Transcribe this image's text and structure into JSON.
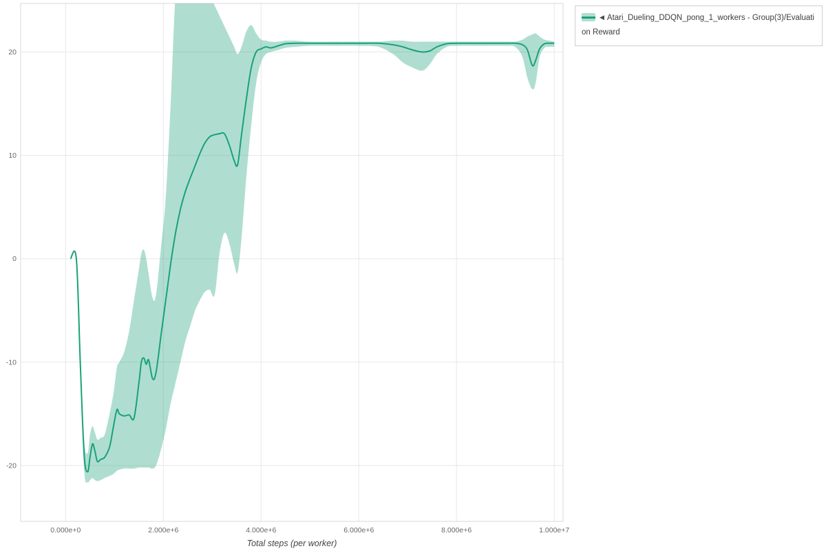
{
  "page": {
    "background": "#ffffff"
  },
  "legend": {
    "collapse_icon": "◀",
    "series_label": "Atari_Dueling_DDQN_pong_1_workers - Group(3)/Evaluation Reward"
  },
  "chart_data": {
    "type": "line",
    "title": "",
    "xlabel": "Total steps (per worker)",
    "ylabel": "",
    "grid": true,
    "legend_position": "top-right-outside",
    "xlim": [
      -920000,
      10180000
    ],
    "ylim": [
      -25.4,
      24.7
    ],
    "x_ticks": [
      0,
      2000000,
      4000000,
      6000000,
      8000000,
      10000000
    ],
    "x_tick_labels": [
      "0.000e+0",
      "2.000e+6",
      "4.000e+6",
      "6.000e+6",
      "8.000e+6",
      "1.000e+7"
    ],
    "y_ticks": [
      -20,
      -10,
      0,
      10,
      20
    ],
    "y_tick_labels": [
      "-20",
      "-10",
      "0",
      "10",
      "20"
    ],
    "series": [
      {
        "name": "Atari_Dueling_DDQN_pong_1_workers - Group(3)/Evaluation Reward",
        "line_color": "#19a179",
        "band_color": "rgba(25,161,121,0.35)",
        "x": [
          100000,
          220000,
          300000,
          380000,
          450000,
          500000,
          550000,
          600000,
          650000,
          720000,
          800000,
          900000,
          980000,
          1050000,
          1100000,
          1200000,
          1300000,
          1400000,
          1500000,
          1550000,
          1600000,
          1650000,
          1700000,
          1780000,
          1850000,
          1950000,
          2050000,
          2150000,
          2250000,
          2350000,
          2450000,
          2550000,
          2650000,
          2750000,
          2850000,
          2950000,
          3050000,
          3150000,
          3250000,
          3350000,
          3450000,
          3520000,
          3600000,
          3700000,
          3800000,
          3900000,
          4000000,
          4100000,
          4200000,
          4350000,
          4500000,
          4700000,
          5000000,
          5500000,
          6000000,
          6400000,
          6700000,
          6900000,
          7100000,
          7300000,
          7450000,
          7600000,
          7800000,
          8000000,
          8500000,
          9000000,
          9200000,
          9350000,
          9450000,
          9550000,
          9620000,
          9700000,
          9800000,
          9900000,
          10000000
        ],
        "mean": [
          0,
          0,
          -10,
          -19,
          -20.6,
          -19.2,
          -17.9,
          -18.6,
          -19.6,
          -19.4,
          -19.2,
          -18.2,
          -16.2,
          -14.6,
          -15,
          -15.2,
          -15.1,
          -15.4,
          -12,
          -10,
          -9.6,
          -10.2,
          -9.8,
          -11.6,
          -11,
          -7.5,
          -4,
          -0.5,
          2.5,
          4.8,
          6.5,
          7.8,
          9,
          10.2,
          11.2,
          11.8,
          12,
          12.1,
          12.1,
          11,
          9.5,
          9.1,
          12,
          15.5,
          18.5,
          20,
          20.3,
          20.5,
          20.4,
          20.6,
          20.8,
          20.85,
          20.85,
          20.85,
          20.85,
          20.85,
          20.7,
          20.5,
          20.2,
          20,
          20.1,
          20.5,
          20.8,
          20.85,
          20.85,
          20.85,
          20.85,
          20.7,
          20.2,
          18.7,
          19.2,
          20.3,
          20.8,
          20.85,
          20.85
        ],
        "lower": [
          0,
          0,
          -11,
          -20.5,
          -21.6,
          -21.4,
          -21.2,
          -21.4,
          -21.5,
          -21.4,
          -21.2,
          -21,
          -20.8,
          -20.5,
          -20.4,
          -20.3,
          -20.3,
          -20.3,
          -20.2,
          -20.2,
          -20.2,
          -20.2,
          -20.2,
          -20.3,
          -20,
          -18.5,
          -16.5,
          -14,
          -12,
          -10,
          -8,
          -6.5,
          -5,
          -4,
          -3.2,
          -3,
          -3.5,
          0.5,
          2.5,
          1.5,
          -0.5,
          -1.3,
          2,
          8,
          13,
          17,
          19,
          19.8,
          20,
          20.2,
          20.4,
          20.5,
          20.6,
          20.6,
          20.6,
          20.5,
          19.8,
          19,
          18.5,
          18.2,
          18.8,
          19.8,
          20.5,
          20.6,
          20.6,
          20.6,
          20.5,
          19.5,
          17.5,
          16.4,
          17,
          19.5,
          20.4,
          20.5,
          20.5
        ],
        "upper": [
          0,
          0,
          -9,
          -17.5,
          -18.8,
          -17,
          -16.2,
          -16.8,
          -17.5,
          -17.3,
          -17,
          -15,
          -13,
          -10.5,
          -10,
          -9,
          -7,
          -4,
          -1,
          0.5,
          0.9,
          0,
          -1.5,
          -3.8,
          -3.5,
          1,
          6,
          15,
          25.5,
          27,
          27,
          27,
          27,
          27,
          26.5,
          25.5,
          24.5,
          23.5,
          22.5,
          21.5,
          20.5,
          19.8,
          20.5,
          22,
          22.6,
          21.8,
          21.2,
          21.1,
          21,
          21,
          21.1,
          21.1,
          21,
          21,
          21,
          21,
          21.1,
          21.1,
          21,
          21,
          21,
          21,
          21,
          21,
          21,
          21,
          21,
          21.2,
          21.5,
          21.7,
          21.8,
          21.5,
          21.2,
          21.1,
          21
        ]
      }
    ],
    "grid_color": "#e8e8e8",
    "border_color": "#d8d8d8"
  }
}
